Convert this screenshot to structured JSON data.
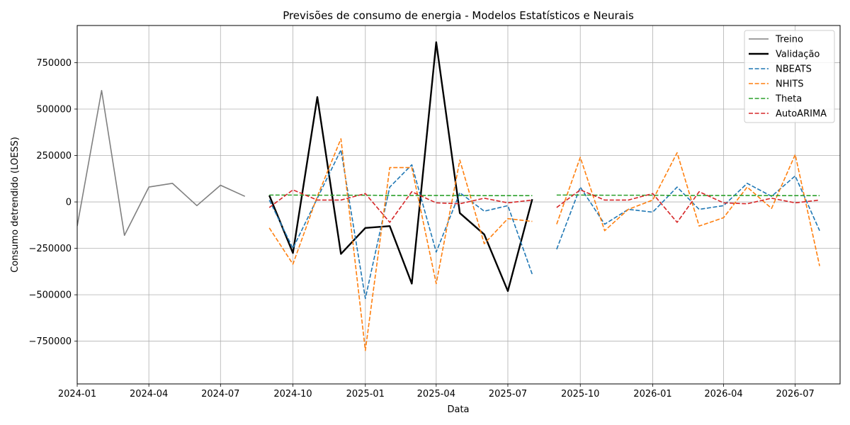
{
  "chart_data": {
    "type": "line",
    "title": "Previsões de consumo de energia - Modelos Estatísticos e Neurais",
    "xlabel": "Data",
    "ylabel": "Consumo detrendido (LOESS)",
    "xlim": [
      "2024-01-01",
      "2026-08-27"
    ],
    "ylim": [
      -980000,
      950000
    ],
    "grid": true,
    "legend_position": "top-right",
    "x_ticks": [
      {
        "date": "2024-01-01",
        "label": "2024-01"
      },
      {
        "date": "2024-04-01",
        "label": "2024-04"
      },
      {
        "date": "2024-07-01",
        "label": "2024-07"
      },
      {
        "date": "2024-10-01",
        "label": "2024-10"
      },
      {
        "date": "2025-01-01",
        "label": "2025-01"
      },
      {
        "date": "2025-04-01",
        "label": "2025-04"
      },
      {
        "date": "2025-07-01",
        "label": "2025-07"
      },
      {
        "date": "2025-10-01",
        "label": "2025-10"
      },
      {
        "date": "2026-01-01",
        "label": "2026-01"
      },
      {
        "date": "2026-04-01",
        "label": "2026-04"
      },
      {
        "date": "2026-07-01",
        "label": "2026-07"
      }
    ],
    "y_ticks": [
      {
        "value": 750000,
        "label": "750000"
      },
      {
        "value": 500000,
        "label": "500000"
      },
      {
        "value": 250000,
        "label": "250000"
      },
      {
        "value": 0,
        "label": "0"
      },
      {
        "value": -250000,
        "label": "−250000"
      },
      {
        "value": -500000,
        "label": "−500000"
      },
      {
        "value": -750000,
        "label": "−750000"
      }
    ],
    "series": [
      {
        "name": "Treino",
        "color": "#808080",
        "style": "solid",
        "width": 1.6,
        "segments": [
          {
            "x": [
              "2024-01-01",
              "2024-02-01",
              "2024-03-01",
              "2024-04-01",
              "2024-05-01",
              "2024-06-01",
              "2024-07-01",
              "2024-08-01"
            ],
            "y": [
              -130000,
              600000,
              -180000,
              80000,
              100000,
              -20000,
              90000,
              30000
            ]
          }
        ]
      },
      {
        "name": "Validação",
        "color": "#000000",
        "style": "solid",
        "width": 2.4,
        "segments": [
          {
            "x": [
              "2024-09-01",
              "2024-10-01",
              "2024-11-01",
              "2024-12-01",
              "2025-01-01",
              "2025-02-01",
              "2025-03-01",
              "2025-04-01",
              "2025-05-01",
              "2025-06-01",
              "2025-07-01",
              "2025-08-01"
            ],
            "y": [
              35000,
              -275000,
              565000,
              -280000,
              -140000,
              -130000,
              -440000,
              860000,
              -60000,
              -175000,
              -480000,
              15000
            ]
          }
        ]
      },
      {
        "name": "NBEATS",
        "color": "#1f77b4",
        "style": "dashed",
        "width": 1.6,
        "segments": [
          {
            "x": [
              "2024-09-01",
              "2024-10-01",
              "2024-11-01",
              "2024-12-01",
              "2025-01-01",
              "2025-02-01",
              "2025-03-01",
              "2025-04-01",
              "2025-05-01",
              "2025-06-01",
              "2025-07-01",
              "2025-08-01"
            ],
            "y": [
              10000,
              -250000,
              20000,
              280000,
              -520000,
              80000,
              200000,
              -270000,
              50000,
              -50000,
              -20000,
              -390000
            ]
          },
          {
            "x": [
              "2025-09-01",
              "2025-10-01",
              "2025-11-01",
              "2025-12-01",
              "2026-01-01",
              "2026-02-01",
              "2026-03-01",
              "2026-04-01",
              "2026-05-01",
              "2026-06-01",
              "2026-07-01",
              "2026-08-01"
            ],
            "y": [
              -255000,
              80000,
              -120000,
              -40000,
              -55000,
              80000,
              -40000,
              -20000,
              100000,
              30000,
              140000,
              -155000
            ]
          }
        ]
      },
      {
        "name": "NHITS",
        "color": "#ff7f0e",
        "style": "dashed",
        "width": 1.6,
        "segments": [
          {
            "x": [
              "2024-09-01",
              "2024-10-01",
              "2024-11-01",
              "2024-12-01",
              "2025-01-01",
              "2025-02-01",
              "2025-03-01",
              "2025-04-01",
              "2025-05-01",
              "2025-06-01",
              "2025-07-01",
              "2025-08-01"
            ],
            "y": [
              -140000,
              -335000,
              30000,
              340000,
              -800000,
              185000,
              185000,
              -440000,
              225000,
              -225000,
              -90000,
              -105000
            ]
          },
          {
            "x": [
              "2025-09-01",
              "2025-10-01",
              "2025-11-01",
              "2025-12-01",
              "2026-01-01",
              "2026-02-01",
              "2026-03-01",
              "2026-04-01",
              "2026-05-01",
              "2026-06-01",
              "2026-07-01",
              "2026-08-01"
            ],
            "y": [
              -120000,
              240000,
              -155000,
              -40000,
              10000,
              265000,
              -130000,
              -85000,
              80000,
              -35000,
              255000,
              -345000
            ]
          }
        ]
      },
      {
        "name": "Theta",
        "color": "#2ca02c",
        "style": "dashed",
        "width": 1.6,
        "segments": [
          {
            "x": [
              "2024-09-01",
              "2024-10-01",
              "2024-11-01",
              "2024-12-01",
              "2025-01-01",
              "2025-02-01",
              "2025-03-01",
              "2025-04-01",
              "2025-05-01",
              "2025-06-01",
              "2025-07-01",
              "2025-08-01"
            ],
            "y": [
              37000,
              37000,
              36000,
              36000,
              36000,
              35000,
              35000,
              35000,
              35000,
              34000,
              34000,
              34000
            ]
          },
          {
            "x": [
              "2025-09-01",
              "2025-10-01",
              "2025-11-01",
              "2025-12-01",
              "2026-01-01",
              "2026-02-01",
              "2026-03-01",
              "2026-04-01",
              "2026-05-01",
              "2026-06-01",
              "2026-07-01",
              "2026-08-01"
            ],
            "y": [
              37000,
              37000,
              36000,
              36000,
              36000,
              35000,
              35000,
              35000,
              35000,
              34000,
              34000,
              34000
            ]
          }
        ]
      },
      {
        "name": "AutoARIMA",
        "color": "#d62728",
        "style": "dashed",
        "width": 1.6,
        "segments": [
          {
            "x": [
              "2024-09-01",
              "2024-10-01",
              "2024-11-01",
              "2024-12-01",
              "2025-01-01",
              "2025-02-01",
              "2025-03-01",
              "2025-04-01",
              "2025-05-01",
              "2025-06-01",
              "2025-07-01",
              "2025-08-01"
            ],
            "y": [
              -30000,
              65000,
              10000,
              10000,
              45000,
              -110000,
              55000,
              -5000,
              -10000,
              20000,
              -5000,
              10000
            ]
          },
          {
            "x": [
              "2025-09-01",
              "2025-10-01",
              "2025-11-01",
              "2025-12-01",
              "2026-01-01",
              "2026-02-01",
              "2026-03-01",
              "2026-04-01",
              "2026-05-01",
              "2026-06-01",
              "2026-07-01",
              "2026-08-01"
            ],
            "y": [
              -30000,
              65000,
              10000,
              10000,
              45000,
              -110000,
              55000,
              -5000,
              -10000,
              20000,
              -5000,
              10000
            ]
          }
        ]
      }
    ]
  }
}
